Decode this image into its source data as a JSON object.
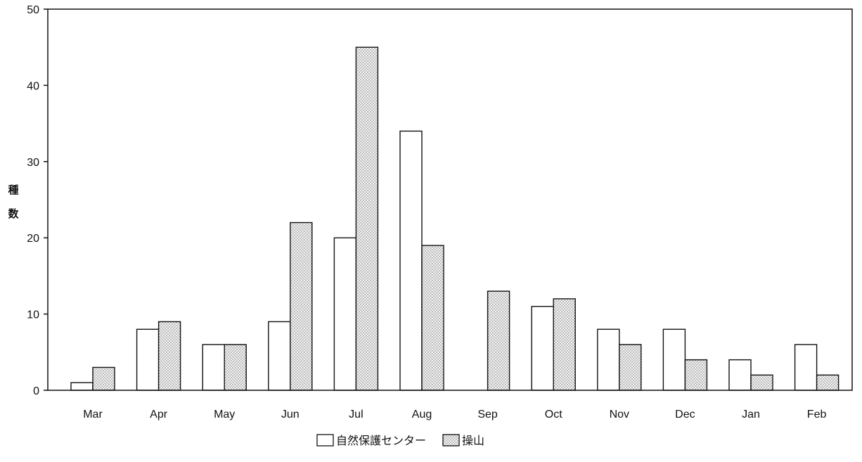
{
  "chart_data": {
    "type": "bar",
    "title": "",
    "xlabel": "",
    "ylabel": "種数",
    "categories": [
      "Mar",
      "Apr",
      "May",
      "Jun",
      "Jul",
      "Aug",
      "Sep",
      "Oct",
      "Nov",
      "Dec",
      "Jan",
      "Feb"
    ],
    "series": [
      {
        "name": "自然保護センター",
        "fill": "white",
        "values": [
          1,
          8,
          6,
          9,
          20,
          34,
          0,
          11,
          8,
          8,
          4,
          6
        ]
      },
      {
        "name": "操山",
        "fill": "dotted",
        "values": [
          3,
          9,
          6,
          22,
          45,
          19,
          13,
          12,
          6,
          4,
          2,
          2
        ]
      }
    ],
    "ylim": [
      0,
      50
    ],
    "yticks": [
      0,
      10,
      20,
      30,
      40,
      50
    ],
    "grid": false,
    "legend_position": "bottom-center"
  },
  "colors": {
    "axis": "#111111",
    "bar_outline": "#111111",
    "bar_fill_plain": "#ffffff",
    "bar_fill_dotted_base": "#f4f4f4",
    "dot": "#6a6a6a"
  }
}
